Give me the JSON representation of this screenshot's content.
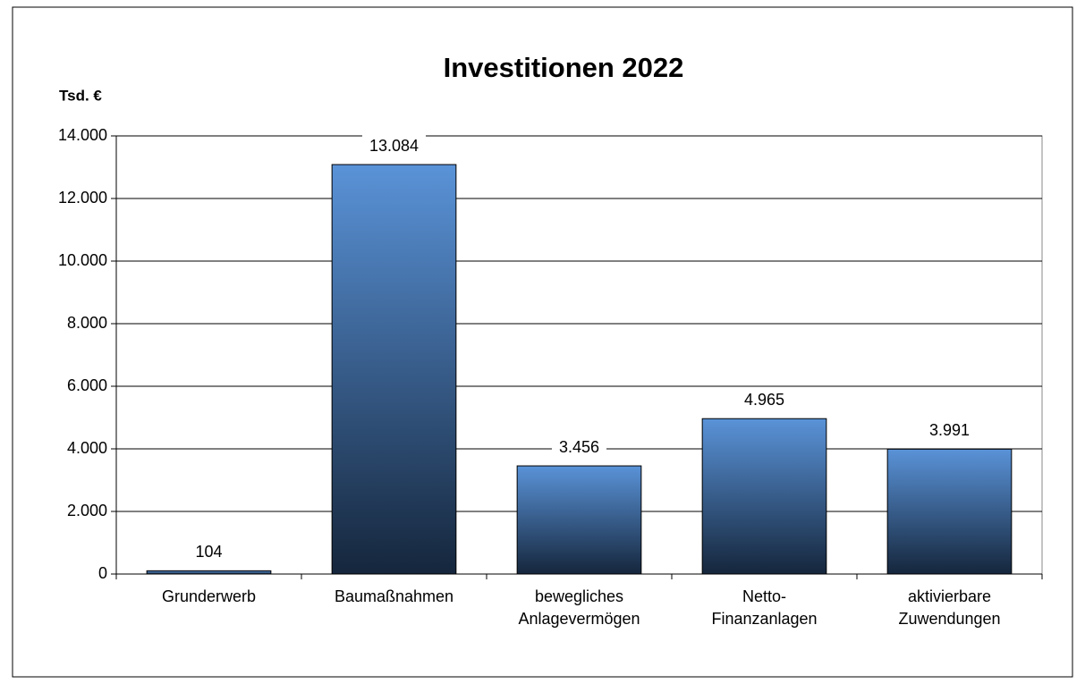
{
  "chart_data": {
    "type": "bar",
    "title": "Investitionen 2022",
    "y_label": "Tsd. €",
    "categories": [
      "Grunderwerb",
      "Baumaßnahmen",
      "bewegliches\nAnlagevermögen",
      "Netto-\nFinanzanlagen",
      "aktivierbare\nZuwendungen"
    ],
    "values": [
      104,
      13084,
      3456,
      4965,
      3991
    ],
    "value_labels": [
      "104",
      "13.084",
      "3.456",
      "4.965",
      "3.991"
    ],
    "color": "#5a93d8",
    "ylim": [
      0,
      14000
    ],
    "yticks": [
      0,
      {
        "value": 2000,
        "label": "2.000"
      },
      {
        "value": 4000,
        "label": "4.000"
      },
      {
        "value": 6000,
        "label": "6.000"
      },
      {
        "value": 8000,
        "label": "8.000"
      },
      {
        "value": 10000,
        "label": "10.000"
      },
      {
        "value": 12000,
        "label": "12.000"
      },
      {
        "value": 14000,
        "label": "14.000"
      }
    ],
    "grid": true
  }
}
